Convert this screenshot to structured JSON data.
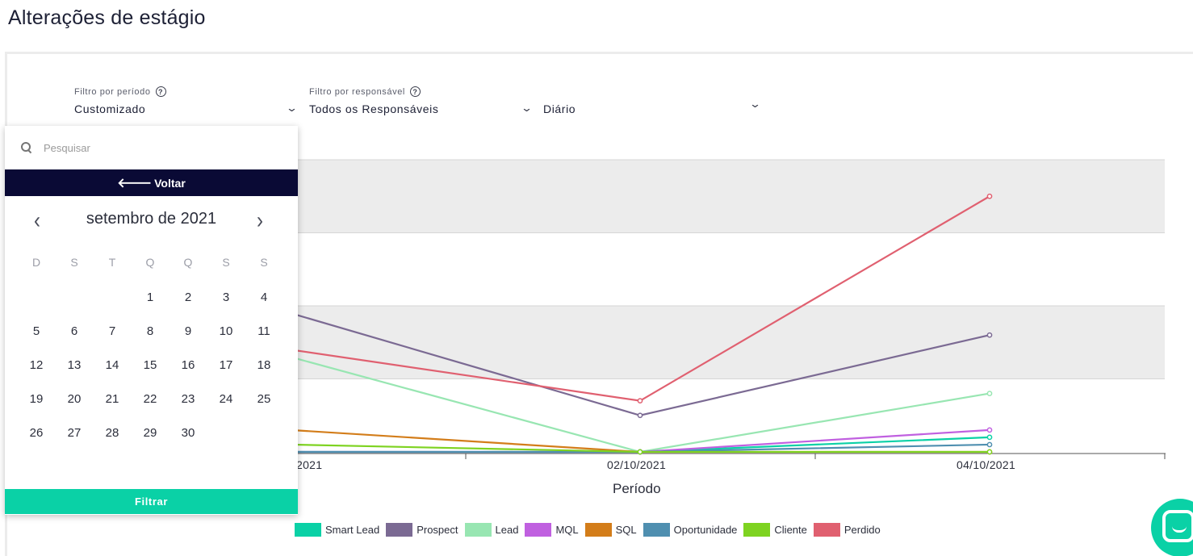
{
  "page": {
    "title": "Alterações de estágio"
  },
  "filters": {
    "period": {
      "label": "Filtro por período",
      "value": "Customizado",
      "help_icon": "question-circle-icon"
    },
    "responsible": {
      "label": "Filtro por responsável",
      "value": "Todos os Responsáveis",
      "help_icon": "question-circle-icon"
    },
    "granularity": {
      "value": "Diário"
    }
  },
  "date_picker": {
    "search_placeholder": "Pesquisar",
    "back_label": "Voltar",
    "month_label": "setembro de 2021",
    "weekdays": [
      "D",
      "S",
      "T",
      "Q",
      "Q",
      "S",
      "S"
    ],
    "days": [
      "1",
      "2",
      "3",
      "4",
      "5",
      "6",
      "7",
      "8",
      "9",
      "10",
      "11",
      "12",
      "13",
      "14",
      "15",
      "16",
      "17",
      "18",
      "19",
      "20",
      "21",
      "22",
      "23",
      "24",
      "25",
      "26",
      "27",
      "28",
      "29",
      "30"
    ],
    "first_weekday_index": 3,
    "apply_label": "Filtrar"
  },
  "chart_data": {
    "type": "line",
    "x": [
      "2021",
      "02/10/2021",
      "04/10/2021"
    ],
    "xlabel": "Período",
    "ylabel": "",
    "grid": true,
    "legend_position": "bottom",
    "series": [
      {
        "name": "Smart Lead",
        "color": "#0ad1a6",
        "values": [
          0,
          0,
          0.2
        ]
      },
      {
        "name": "Prospect",
        "color": "#7b6a93",
        "values": [
          1.9,
          0.5,
          1.6
        ]
      },
      {
        "name": "Lead",
        "color": "#98e6b2",
        "values": [
          1.3,
          0,
          0.8
        ]
      },
      {
        "name": "MQL",
        "color": "#c060e0",
        "values": [
          0,
          0,
          0.3
        ]
      },
      {
        "name": "SQL",
        "color": "#d37d1a",
        "values": [
          0.3,
          0,
          0
        ]
      },
      {
        "name": "Oportunidade",
        "color": "#4f8fb0",
        "values": [
          0,
          0,
          0.1
        ]
      },
      {
        "name": "Cliente",
        "color": "#7ed321",
        "values": [
          0.1,
          0,
          0
        ]
      },
      {
        "name": "Perdido",
        "color": "#e06070",
        "values": [
          1.4,
          0.7,
          3.5
        ]
      }
    ]
  }
}
